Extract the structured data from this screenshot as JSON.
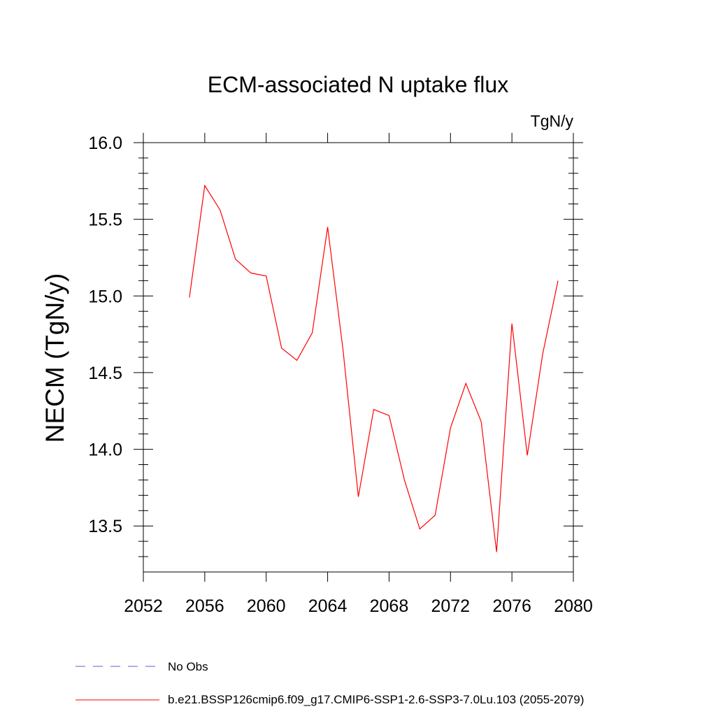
{
  "chart_data": {
    "type": "line",
    "title": "ECM-associated N uptake flux",
    "units": "TgN/y",
    "ylabel": "NECM  (TgN/y)",
    "xlabel": "",
    "xlim": [
      2052,
      2080
    ],
    "ylim": [
      13.2,
      16.0
    ],
    "xticks": [
      2052,
      2056,
      2060,
      2064,
      2068,
      2072,
      2076,
      2080
    ],
    "xtick_labels": [
      "2052",
      "2056",
      "2060",
      "2064",
      "2068",
      "2072",
      "2076",
      "2080"
    ],
    "yticks": [
      13.5,
      14.0,
      14.5,
      15.0,
      15.5,
      16.0
    ],
    "ytick_labels": [
      "13.5",
      "14.0",
      "14.5",
      "15.0",
      "15.5",
      "16.0"
    ],
    "grid": false,
    "legend_position": "bottom-left",
    "series": [
      {
        "name": "b.e21.BSSP126cmip6.f09_g17.CMIP6-SSP1-2.6-SSP3-7.0Lu.103 (2055-2079)",
        "color": "#ff0000",
        "style": "solid",
        "x": [
          2055,
          2056,
          2057,
          2058,
          2059,
          2060,
          2061,
          2062,
          2063,
          2064,
          2065,
          2066,
          2067,
          2068,
          2069,
          2070,
          2071,
          2072,
          2073,
          2074,
          2075,
          2076,
          2077,
          2078,
          2079
        ],
        "values": [
          14.99,
          15.72,
          15.56,
          15.24,
          15.15,
          15.13,
          14.66,
          14.58,
          14.76,
          15.45,
          14.65,
          13.69,
          14.26,
          14.22,
          13.8,
          13.48,
          13.57,
          14.14,
          14.43,
          14.18,
          13.33,
          14.82,
          13.96,
          14.62,
          15.1
        ]
      }
    ],
    "legend": [
      {
        "label": "No Obs",
        "color": "#6a5acd",
        "style": "dashed"
      },
      {
        "label": "b.e21.BSSP126cmip6.f09_g17.CMIP6-SSP1-2.6-SSP3-7.0Lu.103 (2055-2079)",
        "color": "#ff0000",
        "style": "solid"
      }
    ]
  }
}
